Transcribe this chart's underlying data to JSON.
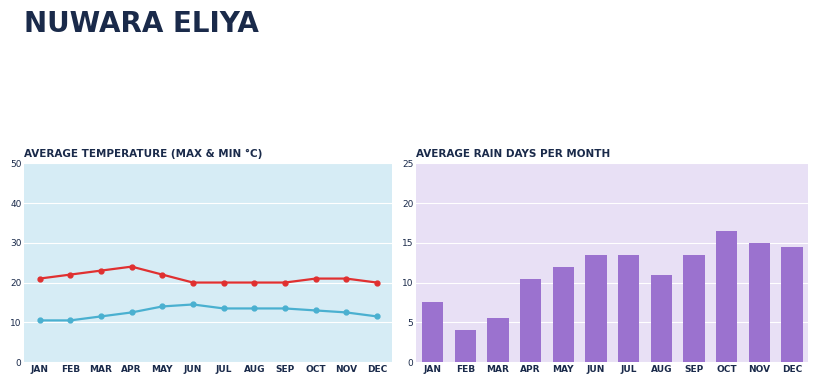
{
  "title": "NUWARA ELIYA",
  "title_color": "#1a2a4a",
  "months": [
    "JAN",
    "FEB",
    "MAR",
    "APR",
    "MAY",
    "JUN",
    "JUL",
    "AUG",
    "SEP",
    "OCT",
    "NOV",
    "DEC"
  ],
  "temp_max": [
    21,
    22,
    23,
    24,
    22,
    20,
    20,
    20,
    20,
    21,
    21,
    20
  ],
  "temp_min": [
    10.5,
    10.5,
    11.5,
    12.5,
    14,
    14.5,
    13.5,
    13.5,
    13.5,
    13,
    12.5,
    11.5
  ],
  "temp_max_color": "#e03030",
  "temp_min_color": "#4ab0d0",
  "rain_days": [
    7.5,
    4,
    5.5,
    10.5,
    12,
    13.5,
    13.5,
    11,
    13.5,
    16.5,
    15,
    14.5
  ],
  "rain_color": "#9b72cf",
  "temp_bg": "#d6ecf5",
  "rain_bg": "#e8e0f5",
  "temp_ylabel_max": 50,
  "temp_ylabel_min": 0,
  "rain_ylabel_max": 25,
  "rain_ylabel_min": 0,
  "temp_title": "AVERAGE TEMPERATURE (MAX & MIN °C)",
  "rain_title": "AVERAGE RAIN DAYS PER MONTH",
  "subtitle_color": "#1a2a4a",
  "grid_color": "#ffffff",
  "tick_color": "#1a2a4a"
}
